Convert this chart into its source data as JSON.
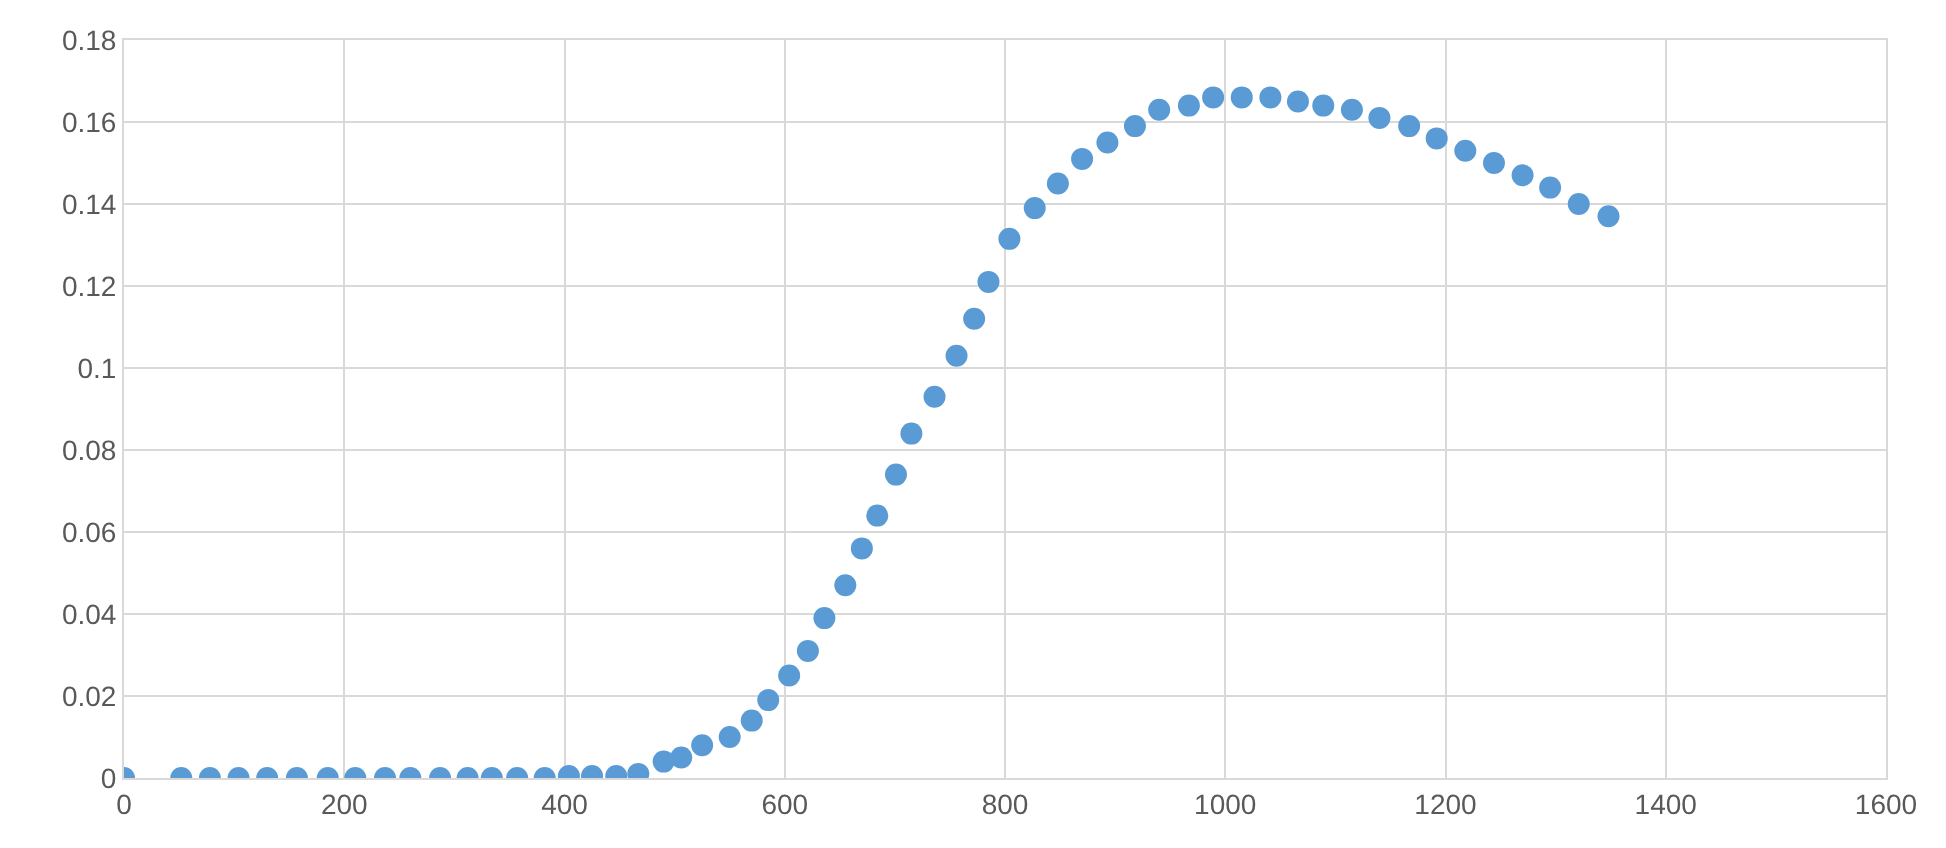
{
  "chart_data": {
    "type": "scatter",
    "x": [
      0,
      52,
      78,
      104,
      130,
      157,
      185,
      210,
      237,
      260,
      287,
      312,
      334,
      357,
      382,
      404,
      425,
      447,
      467,
      490,
      506,
      525,
      550,
      570,
      585,
      604,
      621,
      636,
      655,
      670,
      684,
      701,
      715,
      736,
      756,
      772,
      785,
      804,
      827,
      848,
      870,
      893,
      918,
      940,
      967,
      989,
      1015,
      1041,
      1066,
      1089,
      1115,
      1140,
      1167,
      1192,
      1218,
      1244,
      1270,
      1295,
      1321,
      1348
    ],
    "series": [
      {
        "color": "#5b9bd5",
        "values": [
          0,
          0,
          0,
          0,
          0,
          0,
          0,
          0,
          0,
          0,
          0,
          0,
          0,
          0,
          0,
          0.0005,
          0.0005,
          0.0005,
          0.001,
          0.004,
          0.005,
          0.008,
          0.01,
          0.014,
          0.019,
          0.025,
          0.031,
          0.039,
          0.047,
          0.056,
          0.064,
          0.074,
          0.084,
          0.093,
          0.103,
          0.112,
          0.121,
          0.1315,
          0.139,
          0.145,
          0.151,
          0.155,
          0.159,
          0.163,
          0.164,
          0.166,
          0.166,
          0.166,
          0.165,
          0.164,
          0.163,
          0.161,
          0.159,
          0.156,
          0.153,
          0.15,
          0.147,
          0.144,
          0.14,
          0.137
        ]
      }
    ],
    "xlim": [
      0,
      1600
    ],
    "xticks": [
      0,
      200,
      400,
      600,
      800,
      1000,
      1200,
      1400,
      1600
    ],
    "ylim": [
      0,
      0.18
    ],
    "yticks": [
      0,
      {
        "value": 0.02,
        "label": "0.02"
      },
      {
        "value": 0.04,
        "label": "0.04"
      },
      {
        "value": 0.06,
        "label": "0.06"
      },
      {
        "value": 0.08,
        "label": "0.08"
      },
      {
        "value": 0.1,
        "label": "0.1"
      },
      {
        "value": 0.12,
        "label": "0.12"
      },
      {
        "value": 0.14,
        "label": "0.14"
      },
      {
        "value": 0.16,
        "label": "0.16"
      },
      {
        "value": 0.18,
        "label": "0.18"
      }
    ],
    "grid": true,
    "marker": "circle"
  }
}
